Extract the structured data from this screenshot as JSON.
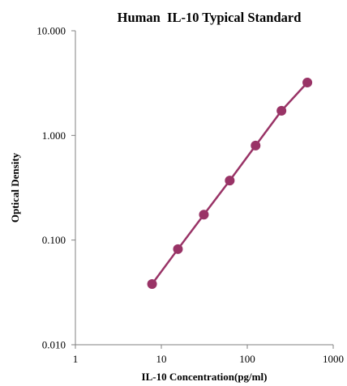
{
  "chart_data": {
    "type": "line",
    "title": "Human  IL-10 Typical Standard",
    "xlabel": "IL-10 Concentration(pg/ml)",
    "ylabel": "Optical Density",
    "x_scale": "log",
    "y_scale": "log",
    "xlim": [
      1,
      1000
    ],
    "ylim": [
      0.01,
      10
    ],
    "x_ticks": [
      1,
      10,
      100,
      1000
    ],
    "x_tick_labels": [
      "1",
      "10",
      "100",
      "1000"
    ],
    "y_ticks": [
      0.01,
      0.1,
      1,
      10
    ],
    "y_tick_labels": [
      "0.010",
      "0.100",
      "1.000",
      "10.000"
    ],
    "grid": false,
    "legend": "none",
    "series": [
      {
        "x": [
          7.8,
          15.6,
          31.25,
          62.5,
          125,
          250,
          500
        ],
        "y": [
          0.038,
          0.082,
          0.175,
          0.37,
          0.8,
          1.72,
          3.2
        ],
        "color": "#993366",
        "marker": "circle"
      }
    ]
  }
}
